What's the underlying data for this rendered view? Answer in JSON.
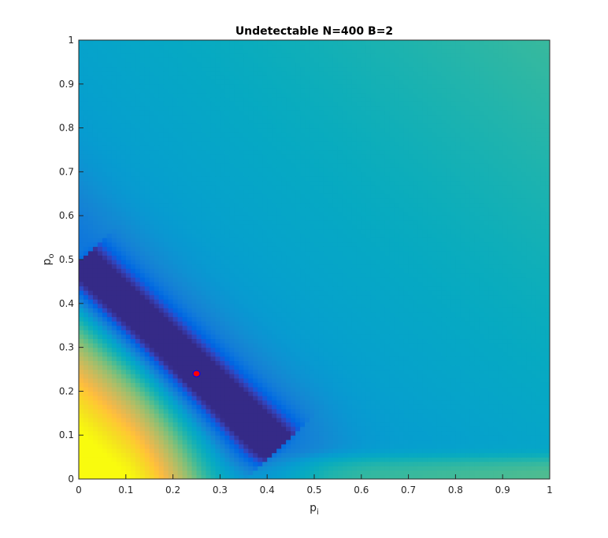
{
  "chart_data": {
    "type": "heatmap",
    "title": "Undetectable N=400 B=2",
    "xlabel": {
      "base": "p",
      "sub": "i"
    },
    "ylabel": {
      "base": "p",
      "sub": "o"
    },
    "xlim": [
      0,
      1
    ],
    "ylim": [
      0,
      1
    ],
    "xticks": [
      "0",
      "0.1",
      "0.2",
      "0.3",
      "0.4",
      "0.5",
      "0.6",
      "0.7",
      "0.8",
      "0.9",
      "1"
    ],
    "yticks": [
      "0",
      "0.1",
      "0.2",
      "0.3",
      "0.4",
      "0.5",
      "0.6",
      "0.7",
      "0.8",
      "0.9",
      "1"
    ],
    "grid_resolution": 100,
    "colormap": "parula",
    "colorbar": false,
    "grid": false,
    "marker": {
      "x": 0.25,
      "y": 0.24,
      "fill": "#ff0000",
      "edge": "#0000ff",
      "shape": "circle"
    }
  }
}
